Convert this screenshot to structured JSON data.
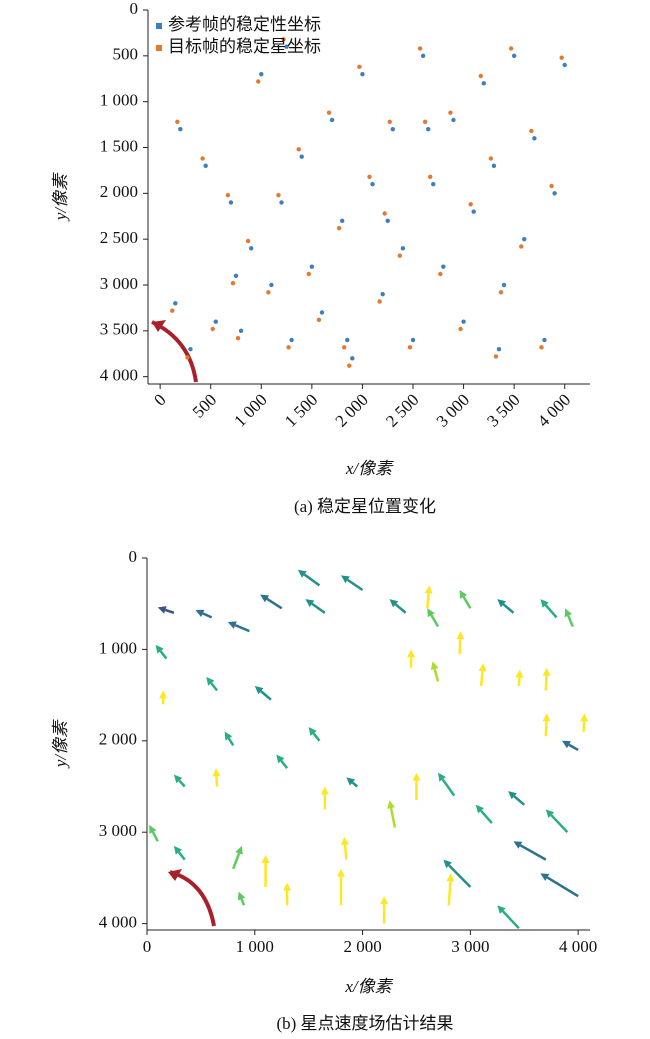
{
  "chart_data": [
    {
      "type": "scatter",
      "caption": "(a) 稳定星位置变化",
      "x_label": "x/像素",
      "y_label": "y/像素",
      "xlim": [
        -120,
        4250
      ],
      "ylim": [
        0,
        4080
      ],
      "y_inverted": true,
      "legend": "upper left",
      "xticks": [
        0,
        500,
        {
          "value": 1000,
          "label": "1 000"
        },
        {
          "value": 1500,
          "label": "1 500"
        },
        {
          "value": 2000,
          "label": "2 000"
        },
        {
          "value": 2500,
          "label": "2 500"
        },
        {
          "value": 3000,
          "label": "3 000"
        },
        {
          "value": 3500,
          "label": "3 500"
        },
        {
          "value": 4000,
          "label": "4 000"
        }
      ],
      "yticks": [
        0,
        500,
        {
          "value": 1000,
          "label": "1 000"
        },
        {
          "value": 1500,
          "label": "1 500"
        },
        {
          "value": 2000,
          "label": "2 000"
        },
        {
          "value": 2500,
          "label": "2 500"
        },
        {
          "value": 3000,
          "label": "3 000"
        },
        {
          "value": 3500,
          "label": "3 500"
        },
        {
          "value": 4000,
          "label": "4 000"
        }
      ],
      "series": [
        {
          "name": "参考帧的稳定性坐标",
          "color": "#3b7fc0",
          "x": [
            150,
            200,
            300,
            450,
            550,
            700,
            800,
            900,
            1000,
            1100,
            1200,
            1300,
            1400,
            1500,
            1600,
            1700,
            1800,
            1900,
            2000,
            2100,
            2200,
            2300,
            2400,
            2500,
            2600,
            2700,
            2800,
            2900,
            3000,
            3100,
            3200,
            3300,
            3400,
            3500,
            3600,
            3700,
            3800,
            3900,
            4000,
            2650,
            1250,
            3350,
            2250,
            750,
            1850
          ],
          "values": [
            3200,
            1300,
            3700,
            1700,
            3400,
            2100,
            3500,
            2600,
            700,
            3000,
            2100,
            3600,
            1600,
            2800,
            3300,
            1200,
            2300,
            3800,
            700,
            1900,
            3100,
            1300,
            2600,
            3600,
            500,
            1900,
            2800,
            1200,
            3400,
            2200,
            800,
            1700,
            3000,
            500,
            2500,
            1400,
            3600,
            2000,
            600,
            1300,
            400,
            3700,
            2300,
            2900,
            3600
          ]
        },
        {
          "name": "目标帧的稳定星坐标",
          "color": "#e8772e",
          "x": [
            120,
            170,
            270,
            420,
            520,
            670,
            770,
            870,
            970,
            1070,
            1170,
            1270,
            1370,
            1470,
            1570,
            1670,
            1770,
            1870,
            1970,
            2070,
            2170,
            2270,
            2370,
            2470,
            2570,
            2670,
            2770,
            2870,
            2970,
            3070,
            3170,
            3270,
            3370,
            3470,
            3570,
            3670,
            3770,
            3870,
            3970,
            2620,
            1220,
            3320,
            2220,
            720,
            1820
          ],
          "values": [
            3280,
            1220,
            3790,
            1620,
            3480,
            2020,
            3580,
            2520,
            780,
            3080,
            2020,
            3680,
            1520,
            2880,
            3380,
            1120,
            2380,
            3880,
            620,
            1820,
            3180,
            1220,
            2680,
            3680,
            420,
            1820,
            2880,
            1120,
            3480,
            2120,
            720,
            1620,
            3080,
            420,
            2580,
            1320,
            3680,
            1920,
            520,
            1220,
            320,
            3780,
            2220,
            2980,
            3680
          ]
        }
      ]
    },
    {
      "type": "quiver",
      "caption": "(b) 星点速度场估计结果",
      "x_label": "x/像素",
      "y_label": "y/像素",
      "xlim": [
        0,
        4110
      ],
      "ylim": [
        0,
        4070
      ],
      "y_inverted": true,
      "colormap": "viridis",
      "xticks": [
        0,
        {
          "value": 1000,
          "label": "1 000"
        },
        {
          "value": 2000,
          "label": "2 000"
        },
        {
          "value": 3000,
          "label": "3 000"
        },
        {
          "value": 4000,
          "label": "4 000"
        }
      ],
      "yticks": [
        0,
        {
          "value": 1000,
          "label": "1 000"
        },
        {
          "value": 2000,
          "label": "2 000"
        },
        {
          "value": 3000,
          "label": "3 000"
        },
        {
          "value": 4000,
          "label": "4 000"
        }
      ],
      "x": [
        250,
        600,
        950,
        1250,
        1600,
        1650,
        2000,
        2400,
        2600,
        3000,
        3400,
        3800,
        3950,
        2700,
        2900,
        3100,
        2450,
        2700,
        3450,
        3700,
        3700,
        4000,
        4050,
        180,
        150,
        650,
        1150,
        800,
        350,
        650,
        1300,
        1600,
        1950,
        1650,
        2300,
        2500,
        2850,
        3200,
        3500,
        3900,
        3700,
        100,
        350,
        800,
        1100,
        1300,
        1800,
        2200,
        2800,
        3000,
        3450,
        4000,
        900,
        1850
      ],
      "y": [
        600,
        650,
        800,
        550,
        300,
        600,
        350,
        600,
        550,
        550,
        600,
        650,
        750,
        750,
        1050,
        1400,
        1200,
        1350,
        1400,
        1450,
        1950,
        2100,
        1900,
        1100,
        1600,
        1450,
        1550,
        2050,
        2500,
        2500,
        2300,
        2000,
        2500,
        2750,
        2950,
        2650,
        2600,
        2900,
        2700,
        3000,
        3300,
        3100,
        3300,
        3400,
        3600,
        3800,
        3800,
        4000,
        3800,
        3600,
        4050,
        3700,
        3800,
        3300
      ],
      "u": [
        -150,
        -150,
        -200,
        -200,
        -200,
        -180,
        -200,
        -150,
        20,
        -100,
        -150,
        -150,
        -70,
        -100,
        10,
        20,
        0,
        -50,
        10,
        10,
        10,
        -150,
        10,
        -100,
        0,
        -100,
        -150,
        -80,
        -100,
        -10,
        -100,
        -100,
        -100,
        0,
        -50,
        0,
        -150,
        -150,
        -150,
        -200,
        -300,
        -80,
        -100,
        80,
        0,
        0,
        0,
        0,
        20,
        -250,
        -200,
        -350,
        -50,
        -20
      ],
      "v": [
        -60,
        -80,
        -100,
        -150,
        -170,
        -150,
        -160,
        -150,
        -250,
        -200,
        -150,
        -200,
        -200,
        -200,
        -250,
        -250,
        -200,
        -220,
        -180,
        -250,
        -250,
        -100,
        -200,
        -150,
        -150,
        -150,
        -150,
        -150,
        -130,
        -200,
        -150,
        -150,
        -100,
        -250,
        -300,
        -300,
        -250,
        -200,
        -150,
        -250,
        -200,
        -180,
        -150,
        -250,
        -350,
        -250,
        -400,
        -300,
        -350,
        -300,
        -250,
        -250,
        -150,
        -250
      ]
    }
  ]
}
